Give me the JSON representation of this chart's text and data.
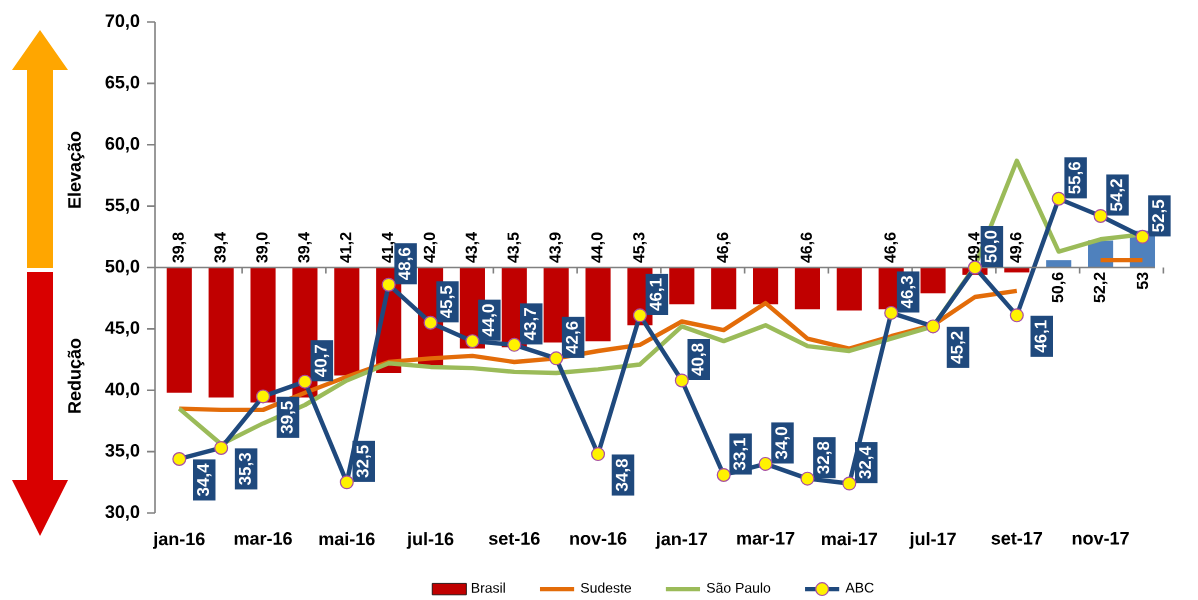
{
  "chart_data": {
    "type": "bar",
    "categories": [
      "jan-16",
      null,
      "mar-16",
      null,
      "mai-16",
      null,
      "jul-16",
      null,
      "set-16",
      null,
      "nov-16",
      null,
      "jan-17",
      null,
      "mar-17",
      null,
      "mai-17",
      null,
      "jul-17",
      null,
      "set-17",
      null,
      "nov-17",
      null
    ],
    "ylim": [
      30,
      70
    ],
    "yticks": [
      {
        "value": 30,
        "label": "30,0"
      },
      {
        "value": 35,
        "label": "35,0"
      },
      {
        "value": 40,
        "label": "40,0"
      },
      {
        "value": 45,
        "label": "45,0"
      },
      {
        "value": 50,
        "label": "50,0"
      },
      {
        "value": 55,
        "label": "55,0"
      },
      {
        "value": 60,
        "label": "60,0"
      },
      {
        "value": 65,
        "label": "65,0"
      },
      {
        "value": 70,
        "label": "70,0"
      }
    ],
    "annotations": [
      "Elevação",
      "Redução"
    ],
    "legend": "bottom",
    "series": [
      {
        "name": "Brasil",
        "type": "bar",
        "base": [
          50,
          50,
          50,
          50,
          50,
          50,
          50,
          50,
          50,
          50,
          50,
          50,
          50,
          50,
          50,
          50,
          50,
          50,
          50,
          50,
          50,
          50,
          50,
          50
        ],
        "values": [
          -10.2,
          -10.6,
          -11.0,
          -10.6,
          -8.8,
          -8.6,
          -8.0,
          -6.6,
          -6.5,
          -6.1,
          -6.0,
          -4.7,
          -3.0,
          -3.4,
          -3.0,
          -3.4,
          -3.5,
          -3.4,
          -2.1,
          -0.6,
          -0.4,
          0.6,
          2.2,
          3.0
        ],
        "colors": [
          "#c00000",
          "#c00000",
          "#c00000",
          "#c00000",
          "#c00000",
          "#c00000",
          "#c00000",
          "#c00000",
          "#c00000",
          "#c00000",
          "#c00000",
          "#c00000",
          "#c00000",
          "#c00000",
          "#c00000",
          "#c00000",
          "#c00000",
          "#c00000",
          "#c00000",
          "#c00000",
          "#c00000",
          "#4f81bd",
          "#4f81bd",
          "#4f81bd"
        ],
        "value_labels": [
          "39,8",
          "39,4",
          "39,0",
          "39,4",
          "41,2",
          "41,4",
          "42,0",
          "43,4",
          "43,5",
          "43,9",
          "44,0",
          "45,3",
          null,
          "46,6",
          null,
          "46,6",
          null,
          "46,6",
          null,
          "49,4",
          "49,6",
          "50,6",
          "52,2",
          "53"
        ]
      },
      {
        "name": "Sudeste",
        "type": "line",
        "color": "#e36c09",
        "values": [
          38.5,
          38.4,
          38.4,
          39.8,
          41.1,
          42.3,
          42.6,
          42.8,
          42.3,
          42.6,
          43.2,
          43.7,
          45.6,
          44.9,
          47.1,
          44.2,
          43.4,
          44.4,
          45.3,
          47.6,
          48.1,
          null,
          50.6,
          50.6
        ]
      },
      {
        "name": "São Paulo",
        "type": "line",
        "color": "#9bbb59",
        "values": [
          38.5,
          35.6,
          37.3,
          38.8,
          40.8,
          42.2,
          41.9,
          41.8,
          41.5,
          41.4,
          41.7,
          42.1,
          45.2,
          44.0,
          45.3,
          43.6,
          43.2,
          44.2,
          45.2,
          50.1,
          58.7,
          51.3,
          52.3,
          52.7
        ]
      },
      {
        "name": "ABC",
        "type": "line",
        "color": "#1f497d",
        "marker": "circle",
        "values": [
          34.4,
          35.3,
          39.5,
          40.7,
          32.5,
          48.6,
          45.5,
          44.0,
          43.7,
          42.6,
          34.8,
          46.1,
          40.8,
          33.1,
          34.0,
          32.8,
          32.4,
          46.3,
          45.2,
          50.0,
          46.1,
          55.6,
          54.2,
          52.5
        ],
        "value_labels": [
          "34,4",
          "35,3",
          "39,5",
          "40,7",
          "32,5",
          "48,6",
          "45,5",
          "44,0",
          "43,7",
          "42,6",
          "34,8",
          "46,1",
          "40,8",
          "33,1",
          "34,0",
          "32,8",
          "32,4",
          "46,3",
          "45,2",
          "50,0",
          "46,1",
          "55,6",
          "54,2",
          "52,5"
        ]
      }
    ]
  }
}
